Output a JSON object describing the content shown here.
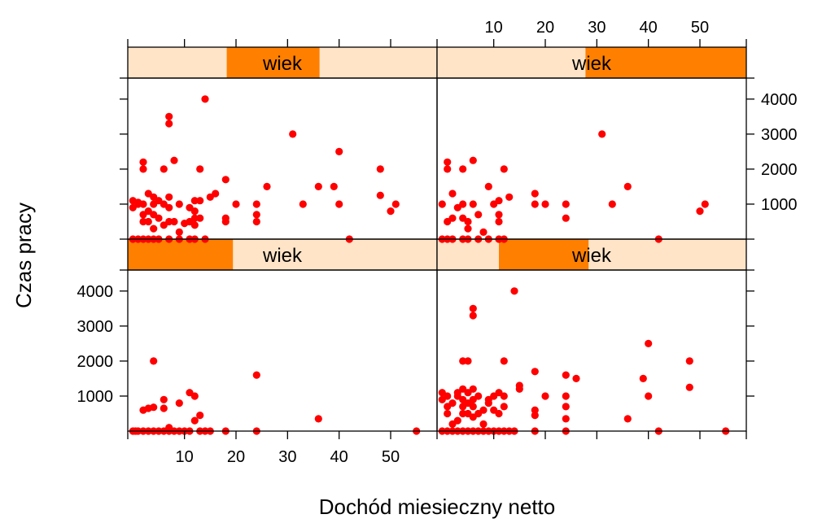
{
  "chart_data": {
    "type": "scatter",
    "layout": "lattice 2x2, shaded strips",
    "xlabel": "Dochód miesieczny netto",
    "ylabel": "Czas pracy",
    "xlim": [
      -1,
      59
    ],
    "ylim": [
      0,
      4600
    ],
    "x_ticks": [
      10,
      20,
      30,
      40,
      50
    ],
    "y_ticks": [
      1000,
      2000,
      3000,
      4000
    ],
    "colors": {
      "points": "#ff0000",
      "strip_background": "#ffe4c8",
      "strip_shingle": "#ff7f00",
      "frame": "#000000"
    },
    "panels": [
      {
        "id": "bottom-left",
        "strip_label": "wiek",
        "shingle_range": [
          0,
          0.34
        ],
        "points": [
          [
            0,
            0
          ],
          [
            0.5,
            0
          ],
          [
            1,
            0
          ],
          [
            2,
            0
          ],
          [
            3,
            0
          ],
          [
            4,
            0
          ],
          [
            5,
            0
          ],
          [
            6,
            0
          ],
          [
            7,
            0
          ],
          [
            8,
            0
          ],
          [
            9,
            0
          ],
          [
            10,
            0
          ],
          [
            11,
            0
          ],
          [
            13,
            0
          ],
          [
            14,
            0
          ],
          [
            15,
            0
          ],
          [
            18,
            0
          ],
          [
            24,
            0
          ],
          [
            55,
            0
          ],
          [
            2,
            600
          ],
          [
            3,
            650
          ],
          [
            4,
            680
          ],
          [
            4,
            2000
          ],
          [
            6,
            650
          ],
          [
            6,
            900
          ],
          [
            9,
            800
          ],
          [
            11,
            1100
          ],
          [
            12,
            1000
          ],
          [
            12,
            300
          ],
          [
            13,
            450
          ],
          [
            7,
            100
          ],
          [
            24,
            1600
          ],
          [
            36,
            350
          ]
        ]
      },
      {
        "id": "bottom-right",
        "strip_label": "wiek",
        "shingle_range": [
          0.2,
          0.49
        ],
        "points": [
          [
            0,
            0
          ],
          [
            1,
            0
          ],
          [
            2,
            0
          ],
          [
            3,
            0
          ],
          [
            4,
            0
          ],
          [
            5,
            0
          ],
          [
            6,
            0
          ],
          [
            7,
            0
          ],
          [
            8,
            0
          ],
          [
            9,
            0
          ],
          [
            10,
            0
          ],
          [
            11,
            0
          ],
          [
            12,
            0
          ],
          [
            13,
            0
          ],
          [
            14,
            0
          ],
          [
            18,
            0
          ],
          [
            24,
            0
          ],
          [
            42,
            0
          ],
          [
            55,
            0
          ],
          [
            0,
            1100
          ],
          [
            0,
            900
          ],
          [
            1,
            1000
          ],
          [
            1,
            700
          ],
          [
            1,
            500
          ],
          [
            2,
            800
          ],
          [
            2,
            200
          ],
          [
            3,
            1000
          ],
          [
            3,
            1100
          ],
          [
            3,
            300
          ],
          [
            4,
            1200
          ],
          [
            4,
            900
          ],
          [
            4,
            700
          ],
          [
            4,
            500
          ],
          [
            4,
            2000
          ],
          [
            5,
            1100
          ],
          [
            5,
            800
          ],
          [
            5,
            500
          ],
          [
            5,
            2000
          ],
          [
            6,
            1200
          ],
          [
            6,
            900
          ],
          [
            6,
            700
          ],
          [
            6,
            400
          ],
          [
            6,
            3500
          ],
          [
            6,
            3300
          ],
          [
            7,
            1000
          ],
          [
            7,
            500
          ],
          [
            8,
            600
          ],
          [
            8,
            200
          ],
          [
            9,
            800
          ],
          [
            9,
            900
          ],
          [
            10,
            1000
          ],
          [
            10,
            600
          ],
          [
            11,
            1100
          ],
          [
            11,
            500
          ],
          [
            12,
            1000
          ],
          [
            12,
            700
          ],
          [
            12,
            2000
          ],
          [
            14,
            4000
          ],
          [
            15,
            1300
          ],
          [
            15,
            1200
          ],
          [
            18,
            1700
          ],
          [
            18,
            600
          ],
          [
            18,
            450
          ],
          [
            20,
            1000
          ],
          [
            24,
            1600
          ],
          [
            24,
            1000
          ],
          [
            24,
            700
          ],
          [
            24,
            350
          ],
          [
            26,
            1500
          ],
          [
            36,
            350
          ],
          [
            39,
            1500
          ],
          [
            40,
            2500
          ],
          [
            40,
            1000
          ],
          [
            48,
            2000
          ],
          [
            48,
            1250
          ]
        ]
      },
      {
        "id": "top-left",
        "strip_label": "wiek",
        "shingle_range": [
          0.32,
          0.62
        ],
        "points": [
          [
            0,
            0
          ],
          [
            1,
            0
          ],
          [
            2,
            0
          ],
          [
            3,
            0
          ],
          [
            4,
            0
          ],
          [
            5,
            0
          ],
          [
            7,
            0
          ],
          [
            9,
            0
          ],
          [
            11,
            0
          ],
          [
            12,
            0
          ],
          [
            14,
            0
          ],
          [
            0,
            1100
          ],
          [
            0,
            900
          ],
          [
            1,
            1000
          ],
          [
            1,
            1050
          ],
          [
            2,
            2200
          ],
          [
            2,
            2000
          ],
          [
            2,
            1000
          ],
          [
            2,
            700
          ],
          [
            2,
            500
          ],
          [
            3,
            1300
          ],
          [
            3,
            800
          ],
          [
            3,
            500
          ],
          [
            4,
            1200
          ],
          [
            4,
            1000
          ],
          [
            4,
            700
          ],
          [
            4,
            300
          ],
          [
            5,
            1100
          ],
          [
            5,
            600
          ],
          [
            6,
            2000
          ],
          [
            6,
            1000
          ],
          [
            6,
            400
          ],
          [
            7,
            3500
          ],
          [
            7,
            3300
          ],
          [
            7,
            1200
          ],
          [
            7,
            900
          ],
          [
            7,
            500
          ],
          [
            8,
            2250
          ],
          [
            8,
            500
          ],
          [
            9,
            1000
          ],
          [
            9,
            200
          ],
          [
            10,
            450
          ],
          [
            11,
            500
          ],
          [
            11,
            900
          ],
          [
            12,
            1100
          ],
          [
            12,
            800
          ],
          [
            12,
            600
          ],
          [
            12,
            400
          ],
          [
            13,
            2000
          ],
          [
            13,
            1100
          ],
          [
            13,
            600
          ],
          [
            14,
            4000
          ],
          [
            15,
            1200
          ],
          [
            16,
            1300
          ],
          [
            18,
            1700
          ],
          [
            18,
            600
          ],
          [
            18,
            500
          ],
          [
            20,
            1000
          ],
          [
            24,
            1000
          ],
          [
            24,
            700
          ],
          [
            24,
            500
          ],
          [
            26,
            1500
          ],
          [
            31,
            3000
          ],
          [
            33,
            1000
          ],
          [
            36,
            1500
          ],
          [
            39,
            1500
          ],
          [
            40,
            2500
          ],
          [
            40,
            1000
          ],
          [
            42,
            0
          ],
          [
            48,
            2000
          ],
          [
            48,
            1250
          ],
          [
            50,
            800
          ],
          [
            51,
            1000
          ]
        ]
      },
      {
        "id": "top-right",
        "strip_label": "wiek",
        "shingle_range": [
          0.48,
          1.0
        ],
        "points": [
          [
            0,
            0
          ],
          [
            1,
            0
          ],
          [
            2,
            0
          ],
          [
            4,
            0
          ],
          [
            5,
            0
          ],
          [
            7,
            0
          ],
          [
            9,
            0
          ],
          [
            11,
            0
          ],
          [
            12,
            0
          ],
          [
            42,
            0
          ],
          [
            0,
            1000
          ],
          [
            1,
            2200
          ],
          [
            1,
            2000
          ],
          [
            1,
            500
          ],
          [
            2,
            1300
          ],
          [
            2,
            600
          ],
          [
            3,
            900
          ],
          [
            4,
            2000
          ],
          [
            4,
            1000
          ],
          [
            4,
            600
          ],
          [
            5,
            500
          ],
          [
            5,
            300
          ],
          [
            6,
            2250
          ],
          [
            6,
            1000
          ],
          [
            7,
            700
          ],
          [
            8,
            200
          ],
          [
            9,
            1500
          ],
          [
            10,
            1000
          ],
          [
            11,
            1100
          ],
          [
            11,
            700
          ],
          [
            11,
            500
          ],
          [
            12,
            2000
          ],
          [
            13,
            1200
          ],
          [
            18,
            1300
          ],
          [
            18,
            1000
          ],
          [
            20,
            1000
          ],
          [
            24,
            1000
          ],
          [
            24,
            600
          ],
          [
            31,
            3000
          ],
          [
            33,
            1000
          ],
          [
            36,
            1500
          ],
          [
            50,
            800
          ],
          [
            51,
            1000
          ]
        ]
      }
    ]
  }
}
